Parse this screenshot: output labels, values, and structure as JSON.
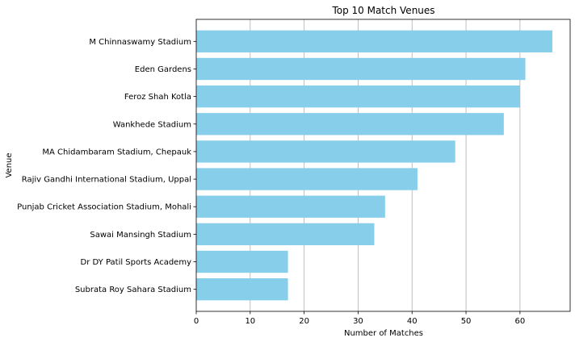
{
  "chart_data": {
    "type": "bar",
    "orientation": "horizontal",
    "title": "Top 10 Match Venues",
    "xlabel": "Number of Matches",
    "ylabel": "Venue",
    "categories": [
      "M Chinnaswamy Stadium",
      "Eden Gardens",
      "Feroz Shah Kotla",
      "Wankhede Stadium",
      "MA Chidambaram Stadium, Chepauk",
      "Rajiv Gandhi International Stadium, Uppal",
      "Punjab Cricket Association Stadium, Mohali",
      "Sawai Mansingh Stadium",
      "Dr DY Patil Sports Academy",
      "Subrata Roy Sahara Stadium"
    ],
    "values": [
      66,
      61,
      60,
      57,
      48,
      41,
      35,
      33,
      17,
      17
    ],
    "xlim": [
      0,
      69.3
    ],
    "xticks": [
      0,
      10,
      20,
      30,
      40,
      50,
      60
    ],
    "grid": "x",
    "bar_color": "#87CEEB",
    "grid_color": "#b0b0b0",
    "axis_color": "#000000"
  }
}
